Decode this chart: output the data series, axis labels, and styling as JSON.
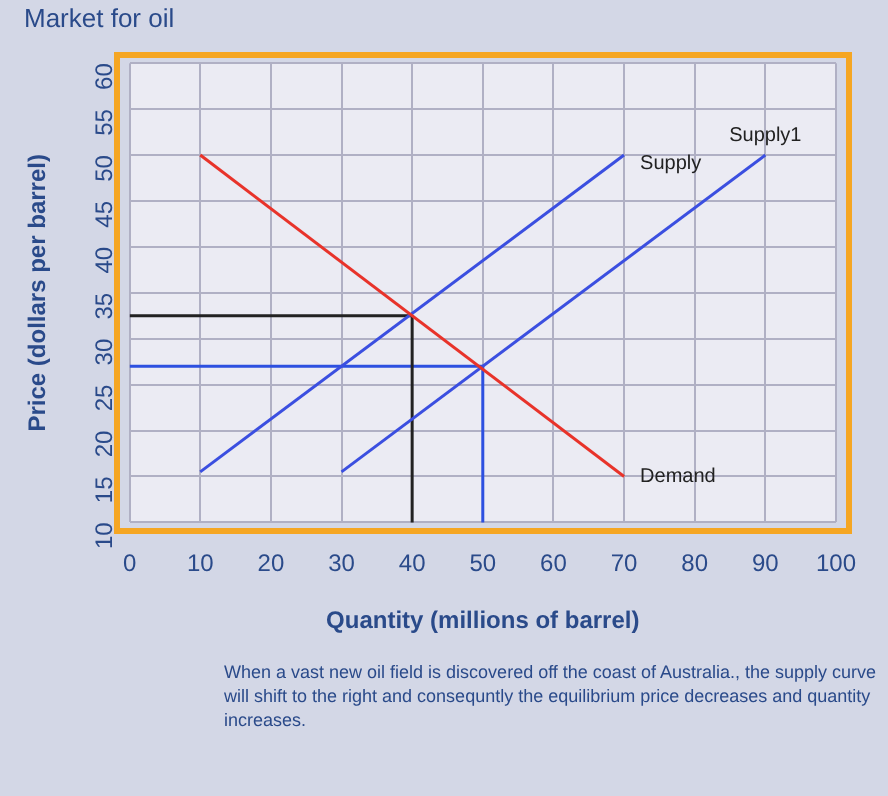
{
  "chart_data": {
    "type": "line",
    "title": "Market for oil",
    "xlabel": "Quantity (millions of barrel)",
    "ylabel": "Price (dollars per barrel)",
    "xlim": [
      0,
      100
    ],
    "xticks": [
      0,
      10,
      20,
      30,
      40,
      50,
      60,
      70,
      80,
      90,
      100
    ],
    "ylim": [
      10,
      60
    ],
    "yticks": [
      10,
      15,
      20,
      25,
      30,
      35,
      40,
      45,
      50,
      55,
      60
    ],
    "grid": true,
    "legend": false,
    "marker": "none",
    "line_style": "solid",
    "series": [
      {
        "name": "Demand",
        "color": "#e8332a",
        "x": [
          10,
          70
        ],
        "values": [
          50,
          15
        ]
      },
      {
        "name": "Supply",
        "color": "#3b4fe0",
        "x": [
          10,
          70
        ],
        "values": [
          15.5,
          50
        ]
      },
      {
        "name": "Supply1",
        "color": "#3b4fe0",
        "x": [
          30,
          90
        ],
        "values": [
          15.5,
          50
        ]
      },
      {
        "color": "#222222",
        "x": [
          0,
          40,
          40
        ],
        "values": [
          32.5,
          32.5,
          10
        ]
      },
      {
        "color": "#2d50e0",
        "x": [
          0,
          50,
          50
        ],
        "values": [
          27,
          27,
          10
        ]
      }
    ],
    "annotations": [
      "When a vast new oil field is discovered off the coast of Australia., the supply curve will shift to the right and consequntly the equilibrium price decreases  and quantity increases."
    ]
  }
}
